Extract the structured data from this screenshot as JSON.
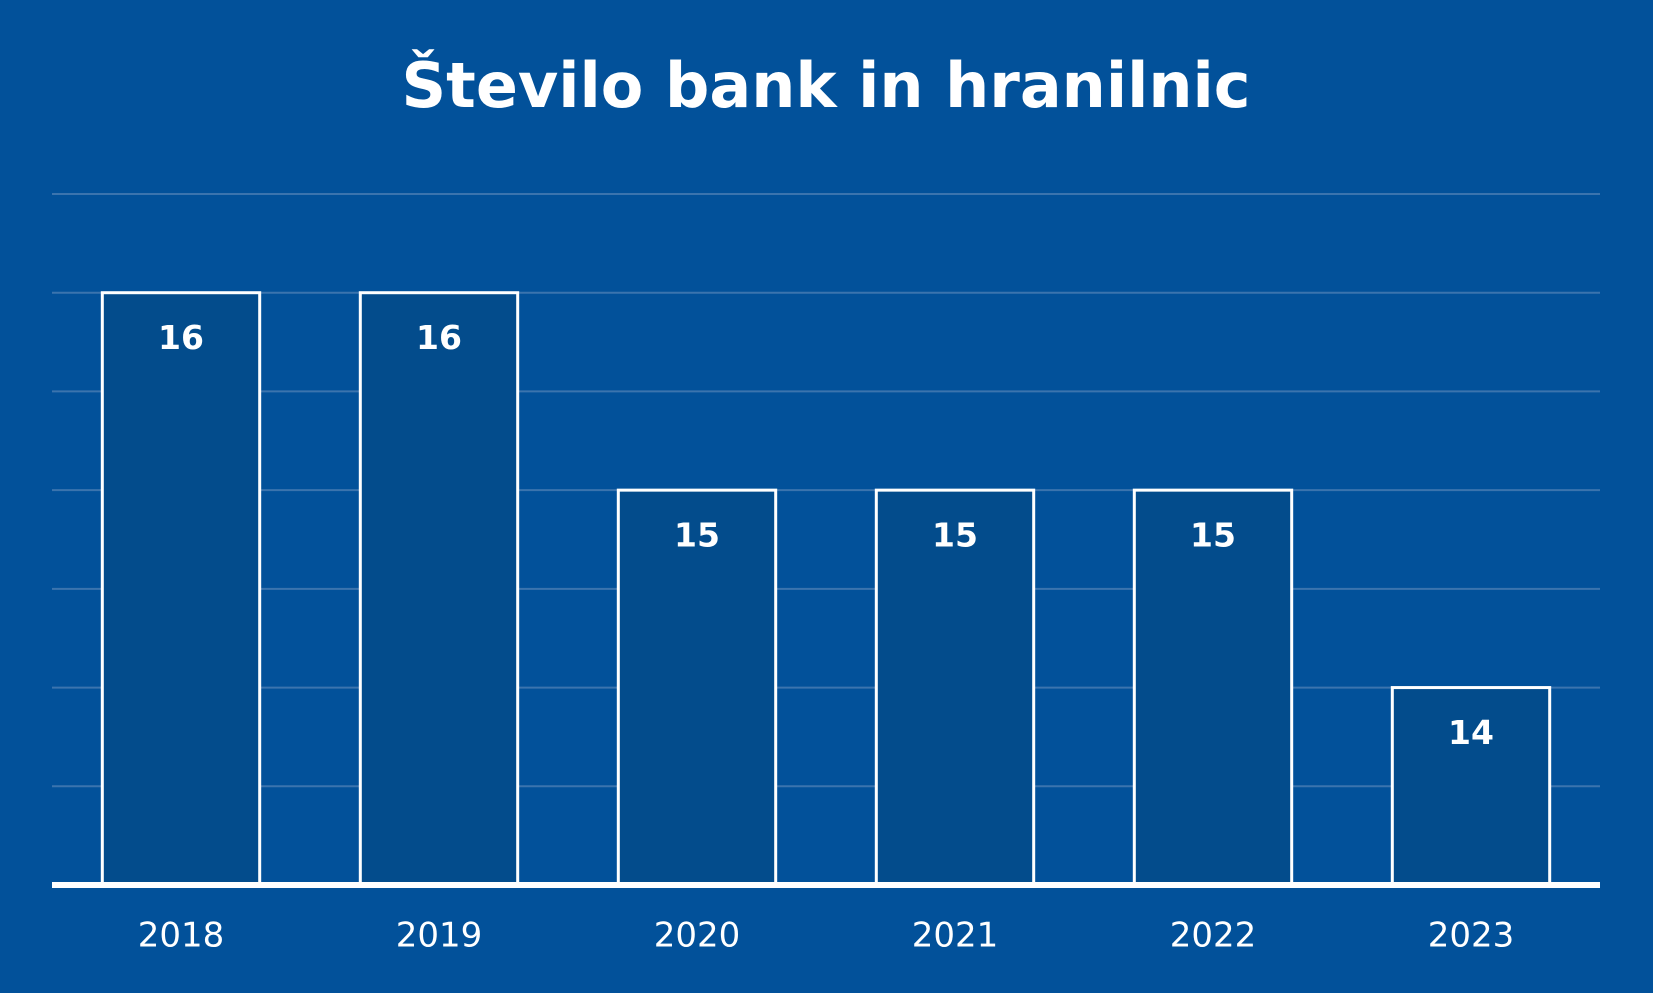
{
  "chart_data": {
    "type": "bar",
    "title": "Število bank in hranilnic",
    "categories": [
      "2018",
      "2019",
      "2020",
      "2021",
      "2022",
      "2023"
    ],
    "values": [
      16,
      16,
      15,
      15,
      15,
      14
    ],
    "color": "#034c8c",
    "ylim": [
      13,
      16.5
    ],
    "yticks": [
      13,
      13.5,
      14,
      14.5,
      15,
      15.5,
      16,
      16.5
    ],
    "grid": true
  }
}
